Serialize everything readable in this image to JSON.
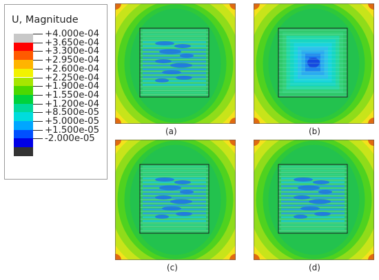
{
  "legend": {
    "title": "U, Magnitude",
    "entries": [
      {
        "label": "+4.000e-04",
        "color": "#c8c8c8"
      },
      {
        "label": "+3.650e-04",
        "color": "#ff0000"
      },
      {
        "label": "+3.300e-04",
        "color": "#ff5a00"
      },
      {
        "label": "+2.950e-04",
        "color": "#ffb400"
      },
      {
        "label": "+2.600e-04",
        "color": "#f2f200"
      },
      {
        "label": "+2.250e-04",
        "color": "#a6e600"
      },
      {
        "label": "+1.900e-04",
        "color": "#4cd800"
      },
      {
        "label": "+1.550e-04",
        "color": "#00d23c"
      },
      {
        "label": "+1.200e-04",
        "color": "#00d99a"
      },
      {
        "label": "+8.500e-05",
        "color": "#00dcdc"
      },
      {
        "label": "+5.000e-05",
        "color": "#00a6ff"
      },
      {
        "label": "+1.500e-05",
        "color": "#0050ff"
      },
      {
        "label": "-2.000e-05",
        "color": "#0000e6"
      },
      {
        "label": "",
        "color": "#333333"
      }
    ]
  },
  "panels": [
    {
      "caption": "(a)",
      "pattern": "horizontal"
    },
    {
      "caption": "(b)",
      "pattern": "concentric"
    },
    {
      "caption": "(c)",
      "pattern": "horizontal"
    },
    {
      "caption": "(d)",
      "pattern": "horizontal"
    }
  ]
}
